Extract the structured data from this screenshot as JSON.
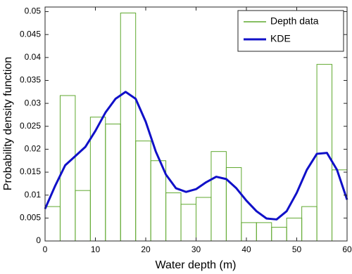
{
  "chart_data": {
    "type": "histogram",
    "xlabel": "Water depth (m)",
    "ylabel": "Probability density function",
    "name": "Depth data",
    "color": "#5fa82e",
    "bins": [
      0,
      3,
      6,
      9,
      12,
      15,
      18,
      21,
      24,
      27,
      30,
      33,
      36,
      39,
      42,
      45,
      48,
      51,
      54,
      57,
      60
    ],
    "values": [
      0.0075,
      0.0317,
      0.011,
      0.027,
      0.0255,
      0.0497,
      0.0218,
      0.0175,
      0.0105,
      0.008,
      0.0095,
      0.0195,
      0.016,
      0.004,
      0.004,
      0.003,
      0.005,
      0.0075,
      0.0385,
      0.0155
    ],
    "line": {
      "type": "line",
      "name": "KDE",
      "color": "#1010c8",
      "x": [
        0,
        2,
        4,
        6,
        8,
        10,
        12,
        14,
        16,
        18,
        20,
        22,
        24,
        26,
        28,
        30,
        32,
        34,
        36,
        38,
        40,
        42,
        44,
        46,
        48,
        50,
        52,
        54,
        56,
        58,
        60
      ],
      "values": [
        0.007,
        0.012,
        0.0165,
        0.0185,
        0.0205,
        0.024,
        0.028,
        0.031,
        0.0325,
        0.031,
        0.026,
        0.0195,
        0.0145,
        0.0115,
        0.0107,
        0.0113,
        0.0128,
        0.014,
        0.0135,
        0.0115,
        0.0088,
        0.0065,
        0.0049,
        0.0047,
        0.0065,
        0.0105,
        0.0155,
        0.019,
        0.0192,
        0.0155,
        0.009
      ]
    },
    "xlim": [
      0,
      60
    ],
    "ylim": [
      0,
      0.051
    ],
    "xticks": [
      0,
      10,
      20,
      30,
      40,
      50,
      60
    ],
    "yticks": [
      0,
      0.005,
      0.01,
      0.015,
      0.02,
      0.025,
      0.03,
      0.035,
      0.04,
      0.045,
      0.05
    ],
    "legend": "upper right"
  }
}
